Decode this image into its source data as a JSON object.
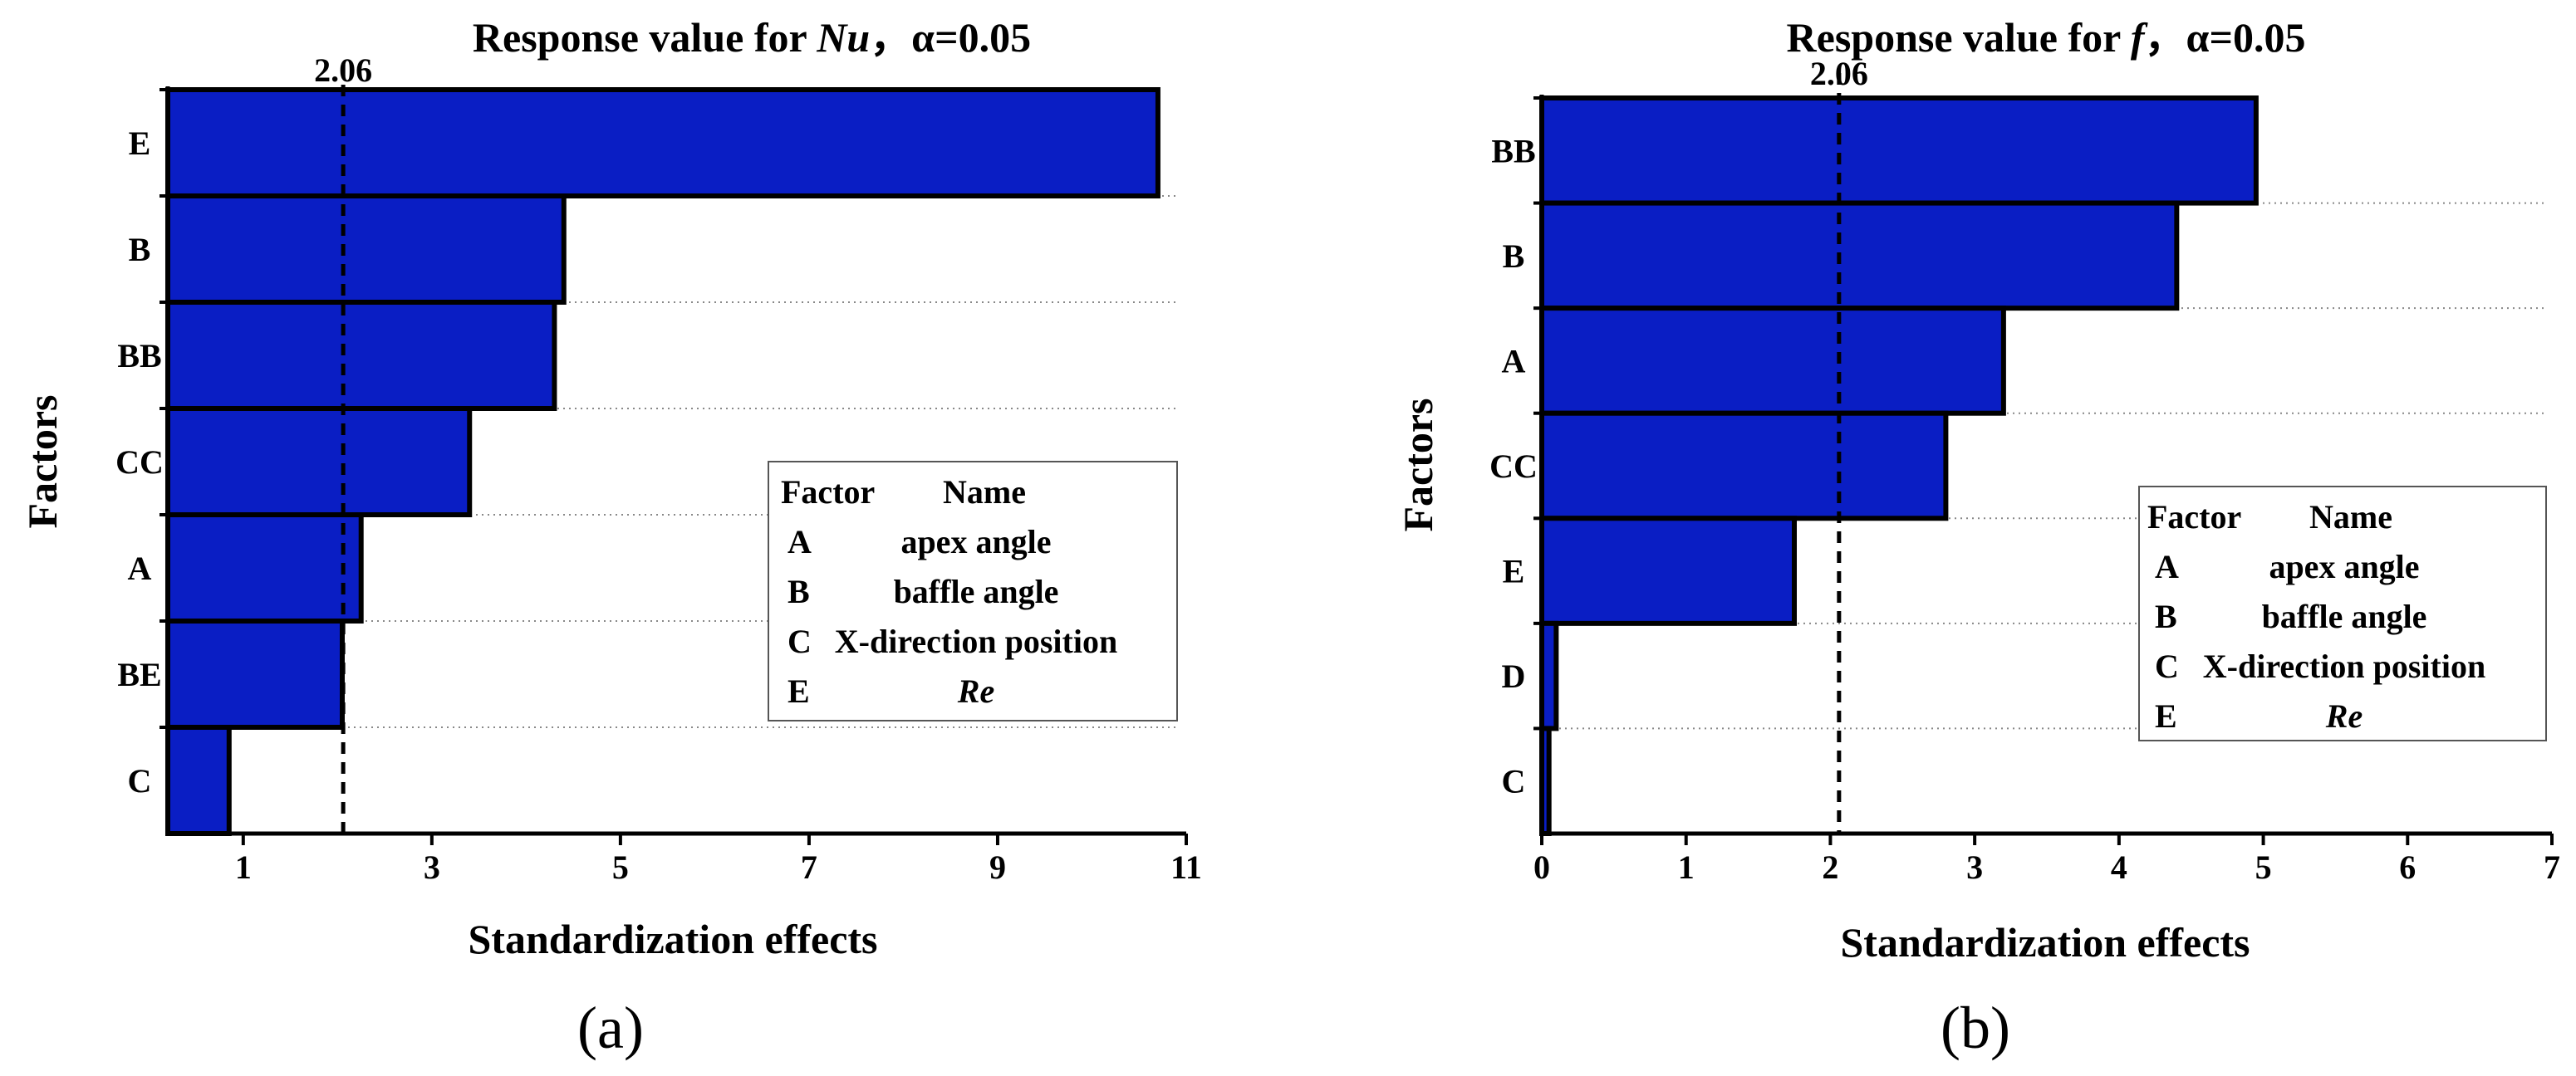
{
  "colors": {
    "bar": "#0a1ec4",
    "bar_stroke": "#000000",
    "grid": "#888888",
    "axis": "#000000"
  },
  "chart_data": [
    {
      "type": "bar",
      "orientation": "horizontal",
      "title_prefix": "Response value for ",
      "title_var": "Nu",
      "title_suffix": "，α=0.05",
      "xlabel": "Standardization effects",
      "ylabel": "Factors",
      "panel_label": "(a)",
      "xlim": [
        0,
        11
      ],
      "xticks": [
        1,
        3,
        5,
        7,
        9,
        11
      ],
      "categories": [
        "E",
        "B",
        "BB",
        "CC",
        "A",
        "BE",
        "C"
      ],
      "values": [
        10.7,
        4.4,
        4.3,
        3.4,
        2.25,
        2.05,
        0.85
      ],
      "threshold": 2.06,
      "threshold_label": "2.06",
      "legend": {
        "position": "center-right",
        "header": [
          "Factor",
          "Name"
        ],
        "rows": [
          [
            "A",
            "apex angle"
          ],
          [
            "B",
            "baffle angle"
          ],
          [
            "C",
            "X-direction position"
          ],
          [
            "E",
            "Re"
          ]
        ]
      }
    },
    {
      "type": "bar",
      "orientation": "horizontal",
      "title_prefix": "Response value for ",
      "title_var": "f",
      "title_suffix": "，α=0.05",
      "xlabel": "Standardization effects",
      "ylabel": "Factors",
      "panel_label": "(b)",
      "xlim": [
        0,
        7
      ],
      "xticks": [
        0,
        1,
        2,
        3,
        4,
        5,
        6,
        7
      ],
      "categories": [
        "BB",
        "B",
        "A",
        "CC",
        "E",
        "D",
        "C"
      ],
      "values": [
        4.95,
        4.4,
        3.2,
        2.8,
        1.75,
        0.1,
        0.05
      ],
      "threshold": 2.06,
      "threshold_label": "2.06",
      "legend": {
        "position": "center-right",
        "header": [
          "Factor",
          "Name"
        ],
        "rows": [
          [
            "A",
            "apex angle"
          ],
          [
            "B",
            "baffle angle"
          ],
          [
            "C",
            "X-direction position"
          ],
          [
            "E",
            "Re"
          ]
        ]
      }
    }
  ]
}
